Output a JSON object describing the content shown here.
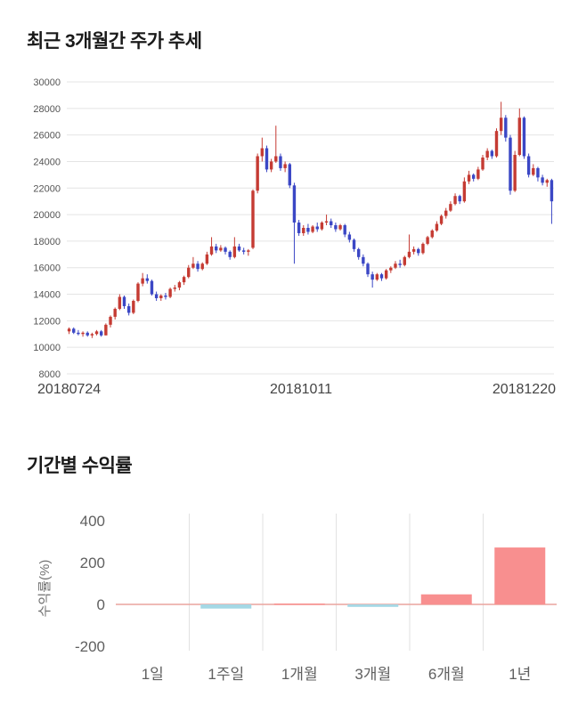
{
  "chart_data": [
    {
      "type": "candlestick",
      "title": "최근 3개월간 주가 추세",
      "x_axis_labels": [
        "20180724",
        "20181011",
        "20181220"
      ],
      "ylim": [
        8000,
        30000
      ],
      "y_ticks": [
        30000,
        28000,
        26000,
        24000,
        22000,
        20000,
        18000,
        16000,
        14000,
        12000,
        10000,
        8000
      ],
      "up_color": "#c53b33",
      "down_color": "#3b47c5",
      "grid_color": "#e4e4e4",
      "candles": [
        [
          11200,
          11500,
          11000,
          11400
        ],
        [
          11400,
          11500,
          11000,
          11100
        ],
        [
          11100,
          11300,
          10900,
          11000
        ],
        [
          11000,
          11200,
          10800,
          11100
        ],
        [
          11100,
          11200,
          10800,
          10900
        ],
        [
          10900,
          11100,
          10700,
          11000
        ],
        [
          11000,
          11300,
          10900,
          11200
        ],
        [
          11200,
          11300,
          10800,
          10900
        ],
        [
          10900,
          11800,
          10900,
          11700
        ],
        [
          11700,
          12400,
          11500,
          12300
        ],
        [
          12300,
          13000,
          12100,
          12900
        ],
        [
          12900,
          14000,
          12800,
          13800
        ],
        [
          13800,
          13900,
          12900,
          13100
        ],
        [
          13100,
          13300,
          12400,
          12600
        ],
        [
          12600,
          13600,
          12500,
          13500
        ],
        [
          13500,
          14900,
          13400,
          14800
        ],
        [
          14800,
          15600,
          14600,
          15200
        ],
        [
          15200,
          15500,
          14800,
          15000
        ],
        [
          15000,
          15100,
          13900,
          14000
        ],
        [
          14000,
          14200,
          13500,
          13700
        ],
        [
          13700,
          14000,
          13500,
          13900
        ],
        [
          13900,
          14100,
          13600,
          13800
        ],
        [
          13800,
          14500,
          13700,
          14400
        ],
        [
          14400,
          14700,
          14200,
          14500
        ],
        [
          14500,
          15000,
          14300,
          14900
        ],
        [
          14900,
          15400,
          14700,
          15300
        ],
        [
          15300,
          16200,
          15200,
          16000
        ],
        [
          16000,
          16800,
          15900,
          16300
        ],
        [
          16300,
          16500,
          15700,
          15900
        ],
        [
          15900,
          16400,
          15800,
          16300
        ],
        [
          16300,
          17200,
          16200,
          17000
        ],
        [
          17000,
          18300,
          16900,
          17600
        ],
        [
          17600,
          17800,
          17100,
          17300
        ],
        [
          17300,
          17700,
          17200,
          17500
        ],
        [
          17500,
          17600,
          17000,
          17200
        ],
        [
          17200,
          17300,
          16600,
          16800
        ],
        [
          16800,
          18300,
          16700,
          17600
        ],
        [
          17600,
          17800,
          17200,
          17300
        ],
        [
          17300,
          17500,
          17000,
          17200
        ],
        [
          17200,
          17400,
          16900,
          17300
        ],
        [
          17500,
          21900,
          17400,
          21800
        ],
        [
          21800,
          24600,
          21600,
          24400
        ],
        [
          24400,
          25800,
          24000,
          25000
        ],
        [
          25000,
          25200,
          23200,
          23400
        ],
        [
          23400,
          24200,
          23200,
          24000
        ],
        [
          24000,
          26700,
          23900,
          24400
        ],
        [
          24400,
          24600,
          23300,
          23500
        ],
        [
          23500,
          24000,
          23200,
          23800
        ],
        [
          23800,
          23900,
          22000,
          22200
        ],
        [
          22200,
          22400,
          16300,
          19400
        ],
        [
          19400,
          19600,
          18400,
          18600
        ],
        [
          18600,
          19200,
          18400,
          19000
        ],
        [
          19000,
          19300,
          18500,
          18700
        ],
        [
          18700,
          19200,
          18600,
          19100
        ],
        [
          19100,
          19400,
          18700,
          18900
        ],
        [
          18900,
          19500,
          18800,
          19400
        ],
        [
          19400,
          20000,
          19200,
          19500
        ],
        [
          19500,
          19700,
          19000,
          19200
        ],
        [
          19200,
          19400,
          18700,
          18900
        ],
        [
          18900,
          19300,
          18800,
          19200
        ],
        [
          19200,
          19300,
          18300,
          18500
        ],
        [
          18500,
          18700,
          17900,
          18100
        ],
        [
          18100,
          18200,
          17200,
          17400
        ],
        [
          17400,
          17500,
          16600,
          16800
        ],
        [
          16800,
          17000,
          16100,
          16300
        ],
        [
          16300,
          16400,
          15300,
          15500
        ],
        [
          15500,
          15700,
          14500,
          15100
        ],
        [
          15100,
          15600,
          15000,
          15500
        ],
        [
          15500,
          15600,
          15000,
          15200
        ],
        [
          15200,
          15900,
          15100,
          15800
        ],
        [
          15800,
          16100,
          15600,
          16000
        ],
        [
          16000,
          16500,
          15900,
          16300
        ],
        [
          16300,
          16600,
          16000,
          16200
        ],
        [
          16200,
          16900,
          16100,
          16800
        ],
        [
          16800,
          18500,
          16700,
          17200
        ],
        [
          17200,
          17600,
          17000,
          17400
        ],
        [
          17400,
          17500,
          16900,
          17100
        ],
        [
          17100,
          17900,
          17000,
          17800
        ],
        [
          17800,
          18400,
          17700,
          18300
        ],
        [
          18300,
          18900,
          18200,
          18800
        ],
        [
          18800,
          19500,
          18700,
          19300
        ],
        [
          19300,
          20000,
          19200,
          19900
        ],
        [
          19900,
          20500,
          19700,
          20300
        ],
        [
          20300,
          21000,
          20200,
          20800
        ],
        [
          20800,
          21600,
          20700,
          21400
        ],
        [
          21400,
          21500,
          20800,
          21000
        ],
        [
          21000,
          22800,
          20900,
          22500
        ],
        [
          22500,
          23300,
          22300,
          23000
        ],
        [
          23000,
          23100,
          22500,
          22700
        ],
        [
          22700,
          23600,
          22600,
          23400
        ],
        [
          23400,
          24500,
          23300,
          24300
        ],
        [
          24300,
          25000,
          24100,
          24800
        ],
        [
          24800,
          24900,
          24200,
          24400
        ],
        [
          24400,
          26500,
          24300,
          26300
        ],
        [
          26300,
          28500,
          26000,
          27300
        ],
        [
          27300,
          27500,
          25500,
          25800
        ],
        [
          25800,
          26000,
          21500,
          21800
        ],
        [
          21800,
          24800,
          21700,
          24500
        ],
        [
          24500,
          28000,
          24400,
          27300
        ],
        [
          27300,
          27400,
          24200,
          24400
        ],
        [
          24400,
          24600,
          22800,
          23000
        ],
        [
          23000,
          23800,
          22900,
          23500
        ],
        [
          23500,
          23600,
          22500,
          22800
        ],
        [
          22800,
          23000,
          22200,
          22400
        ],
        [
          22400,
          22700,
          22100,
          22600
        ],
        [
          22600,
          22700,
          19300,
          21000
        ]
      ]
    },
    {
      "type": "bar",
      "title": "기간별 수익률",
      "ylabel": "수익률(%)",
      "categories": [
        "1일",
        "1주일",
        "1개월",
        "3개월",
        "6개월",
        "1년"
      ],
      "values": [
        0,
        -20,
        4,
        -12,
        48,
        272
      ],
      "ylim": [
        -200,
        400
      ],
      "y_ticks": [
        400,
        200,
        0,
        -200
      ],
      "positive_color": "#f88f8f",
      "negative_color": "#a5d8e5",
      "zero_line_color": "#eaa49e",
      "grid_color": "#e2e2e2"
    }
  ]
}
